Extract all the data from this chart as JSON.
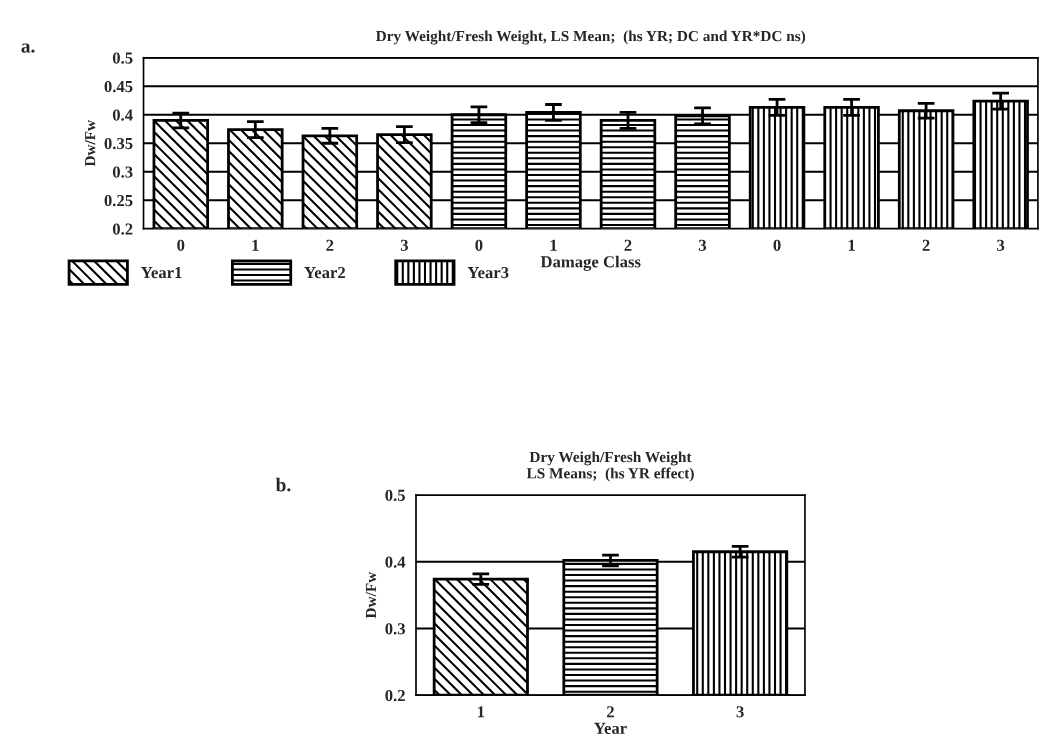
{
  "chart_data": [
    {
      "type": "bar",
      "title": "Dry Weight/Fresh Weight, LS Mean;  (hs YR; DC and YR*DC ns)",
      "xlabel": "Damage Class",
      "ylabel": "Dw/Fw",
      "annotations": [
        "a."
      ],
      "categories": [
        "0",
        "1",
        "2",
        "3",
        "0",
        "1",
        "2",
        "3",
        "0",
        "1",
        "2",
        "3"
      ],
      "series": [
        {
          "name": "Year1",
          "color": "#000000",
          "values": [
            0.39,
            0.374,
            0.363,
            0.365,
            null,
            null,
            null,
            null,
            null,
            null,
            null,
            null
          ],
          "errors": [
            0.013,
            0.014,
            0.013,
            0.014,
            null,
            null,
            null,
            null,
            null,
            null,
            null,
            null
          ]
        },
        {
          "name": "Year2",
          "color": "#000000",
          "values": [
            null,
            null,
            null,
            null,
            0.4,
            0.404,
            0.39,
            0.398,
            null,
            null,
            null,
            null
          ],
          "errors": [
            null,
            null,
            null,
            null,
            0.014,
            0.014,
            0.014,
            0.014,
            null,
            null,
            null,
            null
          ]
        },
        {
          "name": "Year3",
          "color": "#000000",
          "values": [
            null,
            null,
            null,
            null,
            null,
            null,
            null,
            null,
            0.413,
            0.413,
            0.407,
            0.424
          ],
          "errors": [
            null,
            null,
            null,
            null,
            null,
            null,
            null,
            null,
            0.014,
            0.014,
            0.013,
            0.014
          ]
        }
      ],
      "ylim": [
        0.2,
        0.5
      ],
      "yticks": [
        0.2,
        0.25,
        0.3,
        0.35,
        0.4,
        0.45,
        0.5
      ],
      "grid": "y",
      "legend": "bottom left"
    },
    {
      "type": "bar",
      "title": "Dry Weigh/Fresh Weight\nLS Means;  (hs YR effect)",
      "xlabel": "Year",
      "ylabel": "Dw/Fw",
      "annotations": [
        "b."
      ],
      "categories": [
        "1",
        "2",
        "3"
      ],
      "values": [
        0.374,
        0.402,
        0.415
      ],
      "errors": [
        0.008,
        0.008,
        0.008
      ],
      "colors": [
        "#000000",
        "#000000",
        "#000000"
      ],
      "ylim": [
        0.2,
        0.5
      ],
      "yticks": [
        0.2,
        0.3,
        0.4,
        0.5
      ],
      "grid": "y",
      "legend": false
    }
  ]
}
